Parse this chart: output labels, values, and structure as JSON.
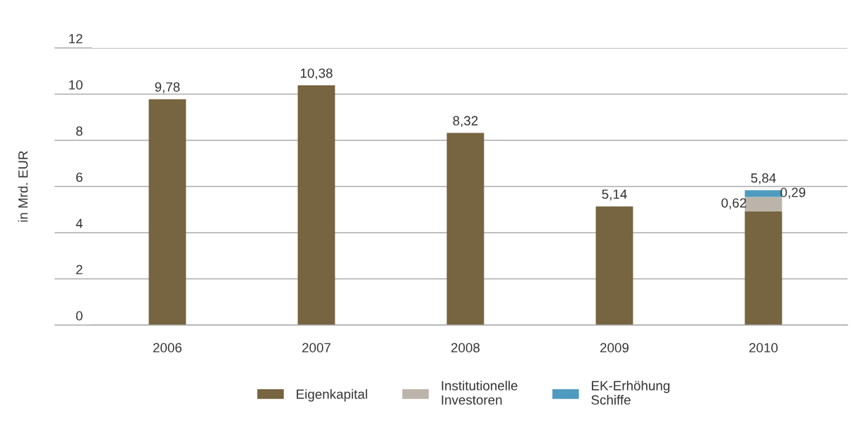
{
  "chart_data": {
    "type": "bar",
    "stacked": true,
    "ylabel": "in Mrd. EUR",
    "categories": [
      "2006",
      "2007",
      "2008",
      "2009",
      "2010"
    ],
    "series": [
      {
        "name": "Eigenkapital",
        "color": "#776440",
        "values": [
          9.78,
          10.38,
          8.32,
          5.14,
          4.93
        ],
        "value_labels": [
          "9,78",
          "10,38",
          "8,32",
          "5,14",
          null
        ]
      },
      {
        "name": "Institutionelle\nInvestoren",
        "color": "#bcb4aa",
        "values": [
          null,
          null,
          null,
          null,
          0.62
        ],
        "value_labels": [
          null,
          null,
          null,
          null,
          "0,62"
        ]
      },
      {
        "name": "EK-Erhöhung\nSchiffe",
        "color": "#4f9bbf",
        "values": [
          null,
          null,
          null,
          null,
          0.29
        ],
        "value_labels": [
          null,
          null,
          null,
          null,
          "0,29"
        ]
      }
    ],
    "totals": [
      null,
      null,
      null,
      null,
      "5,84"
    ],
    "ylim": [
      0,
      12
    ],
    "yticks": [
      0,
      2,
      4,
      6,
      8,
      10,
      12
    ],
    "grid": "y",
    "legend": "bottom"
  }
}
